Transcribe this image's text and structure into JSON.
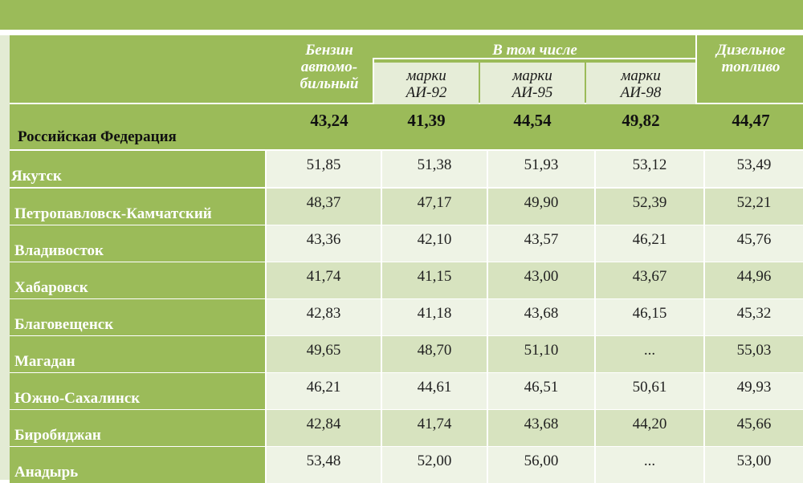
{
  "header": {
    "benzin": [
      "Бензин",
      "автомо-",
      "бильный"
    ],
    "v_tom_chisle": "В том числе",
    "ai92": [
      "марки",
      "АИ-92"
    ],
    "ai95": [
      "марки",
      "АИ-95"
    ],
    "ai98": [
      "марки",
      "АИ-98"
    ],
    "diesel": [
      "Дизельное",
      "топливо"
    ]
  },
  "federation": {
    "label": "Российская Федерация",
    "values": [
      "43,24",
      "41,39",
      "44,54",
      "49,82",
      "44,47"
    ]
  },
  "rows": [
    {
      "city": "Якутск",
      "values": [
        "51,85",
        "51,38",
        "51,93",
        "53,12",
        "53,49"
      ]
    },
    {
      "city": "Петропавловск-Камчатский",
      "values": [
        "48,37",
        "47,17",
        "49,90",
        "52,39",
        "52,21"
      ]
    },
    {
      "city": "Владивосток",
      "values": [
        "43,36",
        "42,10",
        "43,57",
        "46,21",
        "45,76"
      ]
    },
    {
      "city": "Хабаровск",
      "values": [
        "41,74",
        "41,15",
        "43,00",
        "43,67",
        "44,96"
      ]
    },
    {
      "city": "Благовещенск",
      "values": [
        "42,83",
        "41,18",
        "43,68",
        "46,15",
        "45,32"
      ]
    },
    {
      "city": "Магадан",
      "values": [
        "49,65",
        "48,70",
        "51,10",
        "...",
        "55,03"
      ]
    },
    {
      "city": "Южно-Сахалинск",
      "values": [
        "46,21",
        "44,61",
        "46,51",
        "50,61",
        "49,93"
      ]
    },
    {
      "city": "Биробиджан",
      "values": [
        "42,84",
        "41,74",
        "43,68",
        "44,20",
        "45,66"
      ]
    },
    {
      "city": "Анадырь",
      "values": [
        "53,48",
        "52,00",
        "56,00",
        "...",
        "53,00"
      ]
    }
  ],
  "colors": {
    "accent_green": "#9bbb59",
    "cell_light": "#eef3e5",
    "cell_dark": "#d7e3bf"
  }
}
